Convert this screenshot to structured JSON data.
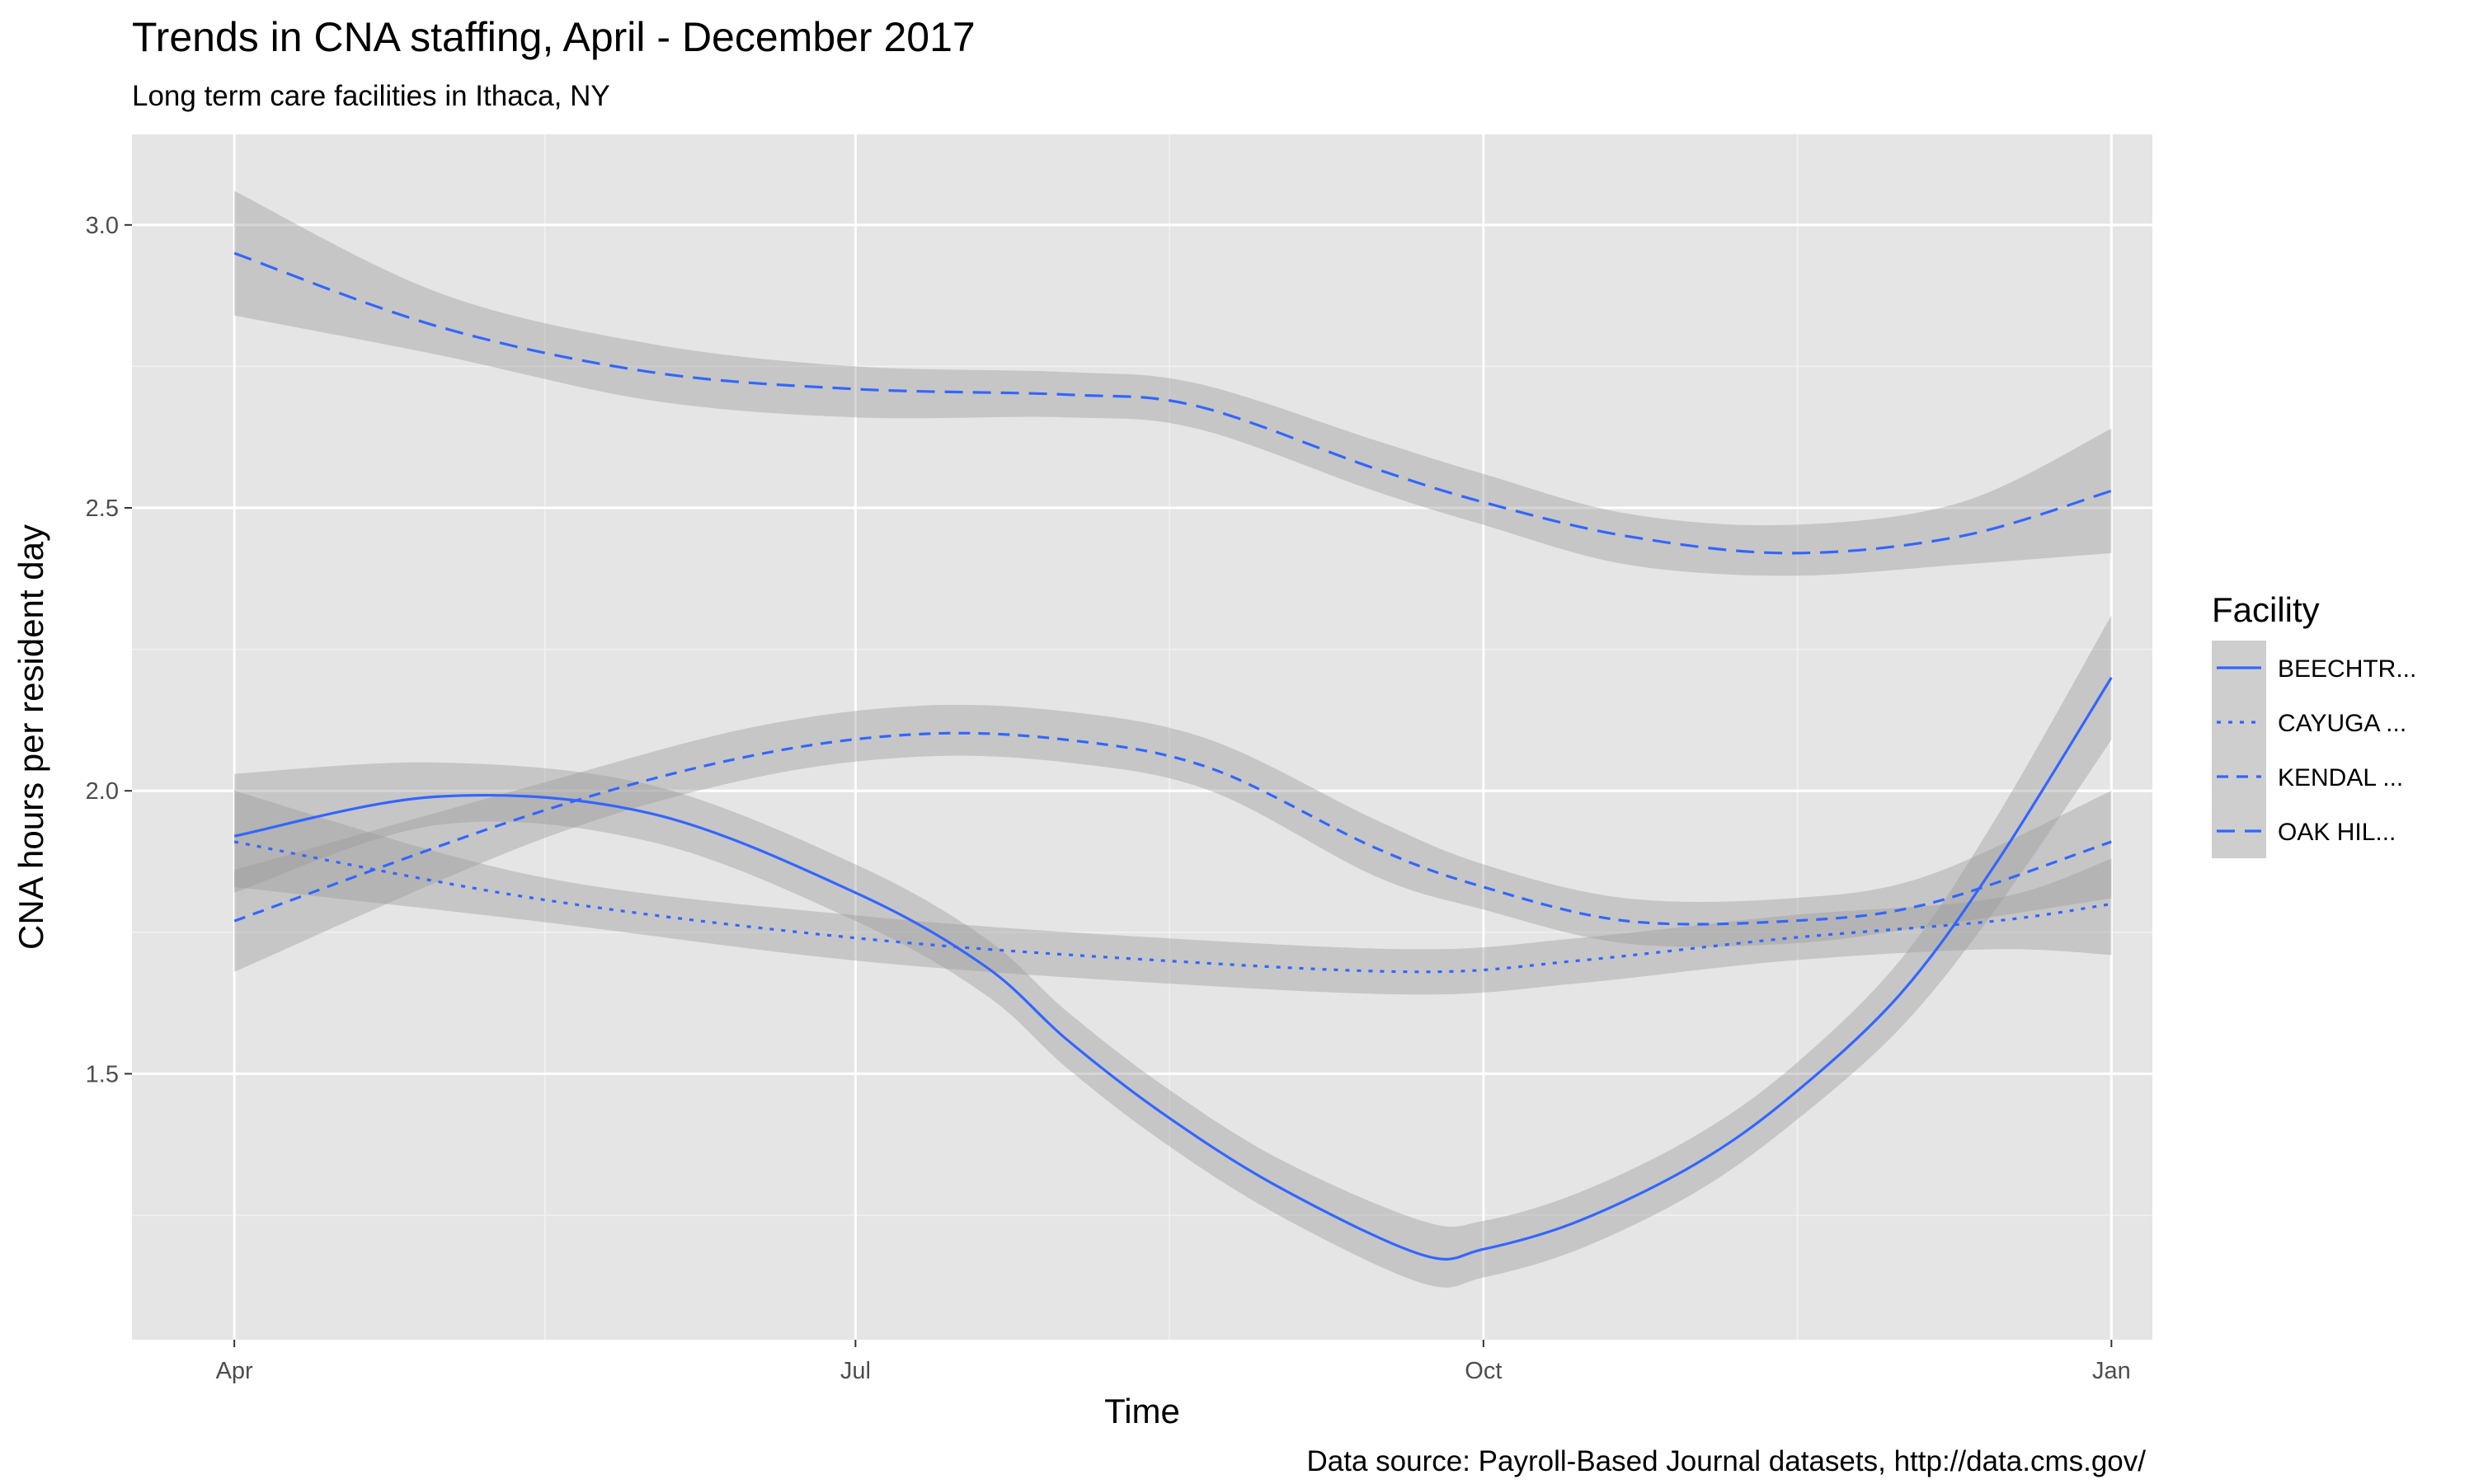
{
  "chart_data": {
    "type": "line",
    "title": "Trends in CNA staffing, April - December 2017",
    "subtitle": "Long term care facilities in Ithaca, NY",
    "caption": "Data source: Payroll-Based Journal datasets, http://data.cms.gov/",
    "xlabel": "Time",
    "ylabel": "CNA hours per resident day",
    "x_ticks": [
      {
        "label": "Apr",
        "date": "2017-04-01"
      },
      {
        "label": "Jul",
        "date": "2017-07-01"
      },
      {
        "label": "Oct",
        "date": "2017-10-01"
      },
      {
        "label": "Jan",
        "date": "2018-01-01"
      }
    ],
    "xlim": [
      "2017-03-17",
      "2018-01-07"
    ],
    "y_ticks": [
      1.5,
      2.0,
      2.5,
      3.0
    ],
    "ylim": [
      1.03,
      3.16
    ],
    "grid": true,
    "legend": {
      "title": "Facility",
      "position": "right"
    },
    "line_color": "#3366ff",
    "band_color": "#999999",
    "series": [
      {
        "name": "BEECHTR...",
        "linetype": "solid",
        "points": [
          {
            "x": "2017-04-01",
            "y": 1.92,
            "lo": 1.82,
            "hi": 2.03
          },
          {
            "x": "2017-05-01",
            "y": 1.99,
            "lo": 1.94,
            "hi": 2.05
          },
          {
            "x": "2017-06-01",
            "y": 1.96,
            "lo": 1.91,
            "hi": 2.01
          },
          {
            "x": "2017-07-01",
            "y": 1.82,
            "lo": 1.77,
            "hi": 1.87
          },
          {
            "x": "2017-07-20",
            "y": 1.69,
            "lo": 1.64,
            "hi": 1.74
          },
          {
            "x": "2017-08-01",
            "y": 1.56,
            "lo": 1.51,
            "hi": 1.61
          },
          {
            "x": "2017-08-15",
            "y": 1.43,
            "lo": 1.38,
            "hi": 1.48
          },
          {
            "x": "2017-09-01",
            "y": 1.3,
            "lo": 1.25,
            "hi": 1.35
          },
          {
            "x": "2017-09-22",
            "y": 1.18,
            "lo": 1.13,
            "hi": 1.24
          },
          {
            "x": "2017-10-01",
            "y": 1.19,
            "lo": 1.14,
            "hi": 1.24
          },
          {
            "x": "2017-10-15",
            "y": 1.24,
            "lo": 1.19,
            "hi": 1.29
          },
          {
            "x": "2017-11-01",
            "y": 1.34,
            "lo": 1.29,
            "hi": 1.39
          },
          {
            "x": "2017-11-15",
            "y": 1.46,
            "lo": 1.41,
            "hi": 1.51
          },
          {
            "x": "2017-12-01",
            "y": 1.64,
            "lo": 1.58,
            "hi": 1.7
          },
          {
            "x": "2017-12-15",
            "y": 1.87,
            "lo": 1.79,
            "hi": 1.95
          },
          {
            "x": "2018-01-01",
            "y": 2.2,
            "lo": 2.09,
            "hi": 2.31
          }
        ]
      },
      {
        "name": "CAYUGA ...",
        "linetype": "dotted",
        "points": [
          {
            "x": "2017-04-01",
            "y": 1.91,
            "lo": 1.83,
            "hi": 2.0
          },
          {
            "x": "2017-05-15",
            "y": 1.81,
            "lo": 1.77,
            "hi": 1.85
          },
          {
            "x": "2017-07-01",
            "y": 1.74,
            "lo": 1.7,
            "hi": 1.78
          },
          {
            "x": "2017-08-15",
            "y": 1.7,
            "lo": 1.66,
            "hi": 1.74
          },
          {
            "x": "2017-09-22",
            "y": 1.68,
            "lo": 1.64,
            "hi": 1.72
          },
          {
            "x": "2017-10-15",
            "y": 1.7,
            "lo": 1.66,
            "hi": 1.74
          },
          {
            "x": "2017-11-15",
            "y": 1.74,
            "lo": 1.7,
            "hi": 1.78
          },
          {
            "x": "2017-12-15",
            "y": 1.77,
            "lo": 1.72,
            "hi": 1.81
          },
          {
            "x": "2018-01-01",
            "y": 1.8,
            "lo": 1.71,
            "hi": 1.88
          }
        ]
      },
      {
        "name": "KENDAL ...",
        "linetype": "dashed",
        "points": [
          {
            "x": "2017-04-01",
            "y": 1.77,
            "lo": 1.68,
            "hi": 1.86
          },
          {
            "x": "2017-05-15",
            "y": 1.96,
            "lo": 1.91,
            "hi": 2.01
          },
          {
            "x": "2017-06-15",
            "y": 2.06,
            "lo": 2.02,
            "hi": 2.11
          },
          {
            "x": "2017-07-10",
            "y": 2.1,
            "lo": 2.06,
            "hi": 2.15
          },
          {
            "x": "2017-08-01",
            "y": 2.09,
            "lo": 2.05,
            "hi": 2.14
          },
          {
            "x": "2017-08-22",
            "y": 2.04,
            "lo": 2.0,
            "hi": 2.09
          },
          {
            "x": "2017-09-15",
            "y": 1.9,
            "lo": 1.85,
            "hi": 1.95
          },
          {
            "x": "2017-10-01",
            "y": 1.83,
            "lo": 1.79,
            "hi": 1.87
          },
          {
            "x": "2017-10-22",
            "y": 1.77,
            "lo": 1.73,
            "hi": 1.81
          },
          {
            "x": "2017-11-15",
            "y": 1.77,
            "lo": 1.73,
            "hi": 1.81
          },
          {
            "x": "2017-12-05",
            "y": 1.8,
            "lo": 1.76,
            "hi": 1.85
          },
          {
            "x": "2018-01-01",
            "y": 1.91,
            "lo": 1.81,
            "hi": 2.0
          }
        ]
      },
      {
        "name": "OAK HIL...",
        "linetype": "longdash",
        "points": [
          {
            "x": "2017-04-01",
            "y": 2.95,
            "lo": 2.84,
            "hi": 3.06
          },
          {
            "x": "2017-05-01",
            "y": 2.82,
            "lo": 2.77,
            "hi": 2.88
          },
          {
            "x": "2017-06-01",
            "y": 2.74,
            "lo": 2.69,
            "hi": 2.79
          },
          {
            "x": "2017-07-01",
            "y": 2.71,
            "lo": 2.66,
            "hi": 2.75
          },
          {
            "x": "2017-08-01",
            "y": 2.7,
            "lo": 2.66,
            "hi": 2.74
          },
          {
            "x": "2017-08-20",
            "y": 2.68,
            "lo": 2.64,
            "hi": 2.72
          },
          {
            "x": "2017-09-15",
            "y": 2.57,
            "lo": 2.53,
            "hi": 2.62
          },
          {
            "x": "2017-10-01",
            "y": 2.51,
            "lo": 2.47,
            "hi": 2.56
          },
          {
            "x": "2017-10-22",
            "y": 2.45,
            "lo": 2.4,
            "hi": 2.49
          },
          {
            "x": "2017-11-15",
            "y": 2.42,
            "lo": 2.38,
            "hi": 2.47
          },
          {
            "x": "2017-12-10",
            "y": 2.45,
            "lo": 2.4,
            "hi": 2.51
          },
          {
            "x": "2018-01-01",
            "y": 2.53,
            "lo": 2.42,
            "hi": 2.64
          }
        ]
      }
    ]
  }
}
